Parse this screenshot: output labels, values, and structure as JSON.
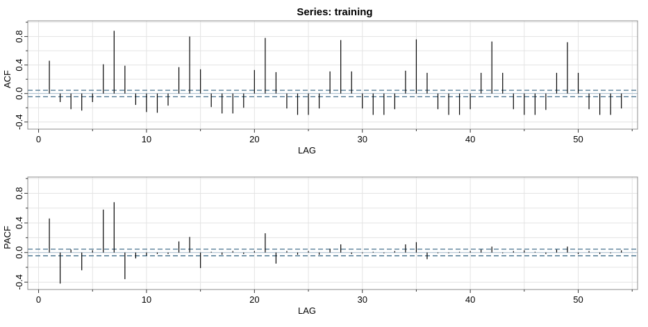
{
  "title": "Series:  training",
  "chart_data": [
    {
      "type": "bar",
      "name": "acf-panel",
      "xlabel": "LAG",
      "ylabel": "ACF",
      "xlim": [
        -1,
        55.5
      ],
      "ylim": [
        -0.5,
        1.02
      ],
      "xticks": [
        0,
        10,
        20,
        30,
        40,
        50
      ],
      "xtick_labels": [
        "0",
        "10",
        "20",
        "30",
        "40",
        "50"
      ],
      "yticks": [
        -0.4,
        0.0,
        0.4,
        0.8
      ],
      "ytick_labels": [
        "-0.4",
        "0.0",
        "0.4",
        "0.8"
      ],
      "grid": true,
      "confidence_band": [
        -0.045,
        0.045
      ],
      "x": [
        1,
        2,
        3,
        4,
        5,
        6,
        7,
        8,
        9,
        10,
        11,
        12,
        13,
        14,
        15,
        16,
        17,
        18,
        19,
        20,
        21,
        22,
        23,
        24,
        25,
        26,
        27,
        28,
        29,
        30,
        31,
        32,
        33,
        34,
        35,
        36,
        37,
        38,
        39,
        40,
        41,
        42,
        43,
        44,
        45,
        46,
        47,
        48,
        49,
        50,
        51,
        52,
        53,
        54
      ],
      "values": [
        0.46,
        -0.12,
        -0.22,
        -0.24,
        -0.12,
        0.41,
        0.88,
        0.39,
        -0.16,
        -0.26,
        -0.27,
        -0.17,
        0.37,
        0.8,
        0.34,
        -0.19,
        -0.28,
        -0.28,
        -0.2,
        0.33,
        0.78,
        0.3,
        -0.21,
        -0.3,
        -0.3,
        -0.21,
        0.31,
        0.75,
        0.31,
        -0.21,
        -0.3,
        -0.3,
        -0.22,
        0.32,
        0.76,
        0.29,
        -0.22,
        -0.3,
        -0.3,
        -0.22,
        0.29,
        0.73,
        0.29,
        -0.22,
        -0.3,
        -0.3,
        -0.23,
        0.29,
        0.72,
        0.29,
        -0.22,
        -0.3,
        -0.3,
        -0.21
      ]
    },
    {
      "type": "bar",
      "name": "pacf-panel",
      "xlabel": "LAG",
      "ylabel": "PACF",
      "xlim": [
        -1,
        55.5
      ],
      "ylim": [
        -0.5,
        1.02
      ],
      "xticks": [
        0,
        10,
        20,
        30,
        40,
        50
      ],
      "xtick_labels": [
        "0",
        "10",
        "20",
        "30",
        "40",
        "50"
      ],
      "yticks": [
        -0.4,
        0.0,
        0.4,
        0.8
      ],
      "ytick_labels": [
        "-0.4",
        "0.0",
        "0.4",
        "0.8"
      ],
      "grid": true,
      "confidence_band": [
        -0.045,
        0.045
      ],
      "x": [
        1,
        2,
        3,
        4,
        5,
        6,
        7,
        8,
        9,
        10,
        11,
        12,
        13,
        14,
        15,
        16,
        17,
        18,
        19,
        20,
        21,
        22,
        23,
        24,
        25,
        26,
        27,
        28,
        29,
        30,
        31,
        32,
        33,
        34,
        35,
        36,
        37,
        38,
        39,
        40,
        41,
        42,
        43,
        44,
        45,
        46,
        47,
        48,
        49,
        50,
        51,
        52,
        53,
        54
      ],
      "values": [
        0.46,
        -0.42,
        0.04,
        -0.24,
        0.03,
        0.58,
        0.68,
        -0.36,
        -0.08,
        -0.04,
        -0.02,
        -0.02,
        0.15,
        0.21,
        -0.21,
        0.01,
        -0.03,
        0.02,
        -0.02,
        0.02,
        0.26,
        -0.15,
        0.02,
        -0.03,
        0.02,
        -0.03,
        0.05,
        0.11,
        -0.02,
        -0.01,
        0.01,
        -0.01,
        0.02,
        0.11,
        0.14,
        -0.09,
        -0.01,
        -0.01,
        0.01,
        0.02,
        0.04,
        0.08,
        -0.01,
        0.02,
        0.03,
        0.01,
        -0.02,
        0.04,
        0.08,
        -0.02,
        0.02,
        -0.02,
        -0.01,
        0.03
      ]
    }
  ]
}
